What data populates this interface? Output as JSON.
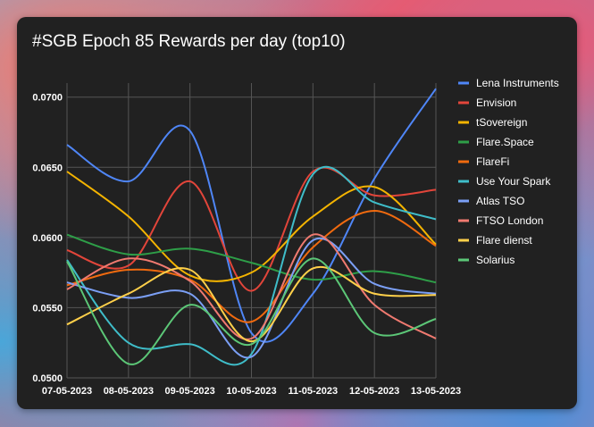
{
  "chart_data": {
    "type": "line",
    "title": "#SGB Epoch 85 Rewards per day (top10)",
    "xlabel": "",
    "ylabel": "",
    "ylim": [
      0.05,
      0.071
    ],
    "yticks": [
      0.05,
      0.055,
      0.06,
      0.065,
      0.07
    ],
    "ytick_labels": [
      "0.0500",
      "0.0550",
      "0.0600",
      "0.0650",
      "0.0700"
    ],
    "categories": [
      "07-05-2023",
      "08-05-2023",
      "09-05-2023",
      "10-05-2023",
      "11-05-2023",
      "12-05-2023",
      "13-05-2023"
    ],
    "legend_position": "right",
    "grid": true,
    "series": [
      {
        "name": "Lena Instruments",
        "color": "#4f86f7",
        "values": [
          0.0666,
          0.064,
          0.0676,
          0.0532,
          0.056,
          0.0642,
          0.0706
        ]
      },
      {
        "name": "Envision",
        "color": "#e2453a",
        "values": [
          0.0591,
          0.058,
          0.064,
          0.0562,
          0.0647,
          0.063,
          0.0634
        ]
      },
      {
        "name": "tSovereign",
        "color": "#f4b400",
        "values": [
          0.0647,
          0.0615,
          0.0573,
          0.0575,
          0.0615,
          0.0636,
          0.0595
        ]
      },
      {
        "name": "Flare.Space",
        "color": "#2e9e48",
        "values": [
          0.0602,
          0.0588,
          0.0592,
          0.0582,
          0.057,
          0.0576,
          0.0568
        ]
      },
      {
        "name": "FlareFi",
        "color": "#f06a0f",
        "values": [
          0.0566,
          0.0577,
          0.057,
          0.054,
          0.0593,
          0.0619,
          0.0594
        ]
      },
      {
        "name": "Use Your Spark",
        "color": "#3fbdc9",
        "values": [
          0.0584,
          0.0525,
          0.0524,
          0.0517,
          0.0645,
          0.0625,
          0.0613
        ]
      },
      {
        "name": "Atlas TSO",
        "color": "#7b9ff5",
        "values": [
          0.0568,
          0.0557,
          0.056,
          0.0515,
          0.0598,
          0.0567,
          0.056
        ]
      },
      {
        "name": "FTSO London",
        "color": "#f07a70",
        "values": [
          0.0563,
          0.0585,
          0.0569,
          0.0528,
          0.0602,
          0.0552,
          0.0528
        ]
      },
      {
        "name": "Flare dienst",
        "color": "#ffd04a",
        "values": [
          0.0538,
          0.056,
          0.0577,
          0.0526,
          0.0578,
          0.056,
          0.0559
        ]
      },
      {
        "name": "Solarius",
        "color": "#5cc777",
        "values": [
          0.0583,
          0.051,
          0.0552,
          0.0524,
          0.0585,
          0.0532,
          0.0542
        ]
      }
    ]
  }
}
